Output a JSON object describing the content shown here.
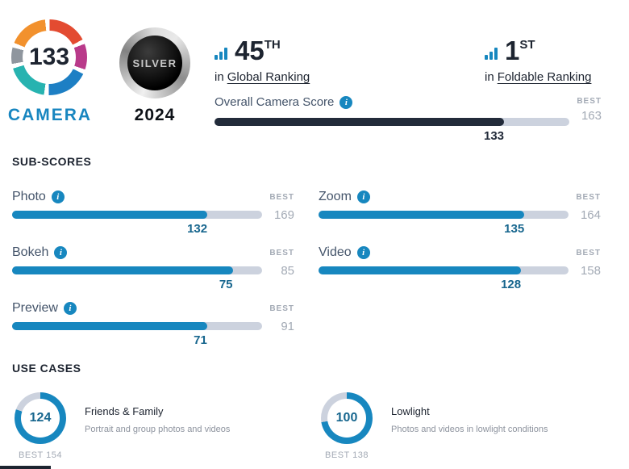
{
  "colors": {
    "accent": "#1787bf",
    "dark": "#222b3a",
    "track": "#ccd2de",
    "muted": "#a3aab5",
    "score": "#17668e"
  },
  "icons": {
    "info": "i"
  },
  "logo": {
    "score": "133",
    "brand": "CAMERA"
  },
  "award": {
    "label": "SILVER",
    "year": "2024"
  },
  "rankings": [
    {
      "value": "45",
      "ordinal": "TH",
      "prefix": "in",
      "link": "Global Ranking"
    },
    {
      "value": "1",
      "ordinal": "ST",
      "prefix": "in",
      "link": "Foldable Ranking"
    }
  ],
  "overall": {
    "label": "Overall Camera Score",
    "value": 133,
    "best": 163,
    "best_label": "BEST"
  },
  "sub_scores": {
    "heading": "SUB-SCORES",
    "best_label": "BEST",
    "items": [
      {
        "label": "Photo",
        "value": 132,
        "best": 169
      },
      {
        "label": "Bokeh",
        "value": 75,
        "best": 85
      },
      {
        "label": "Preview",
        "value": 71,
        "best": 91
      },
      {
        "label": "Zoom",
        "value": 135,
        "best": 164
      },
      {
        "label": "Video",
        "value": 128,
        "best": 158
      }
    ]
  },
  "use_cases": {
    "heading": "USE CASES",
    "best_label": "BEST",
    "items": [
      {
        "title": "Friends & Family",
        "description": "Portrait and group photos and videos",
        "value": 124,
        "best": 154
      },
      {
        "title": "Lowlight",
        "description": "Photos and videos in lowlight conditions",
        "value": 100,
        "best": 138
      }
    ]
  }
}
